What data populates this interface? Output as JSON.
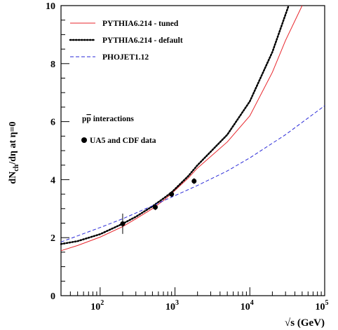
{
  "chart_data": {
    "type": "line",
    "title": "",
    "xlabel": "√s (GeV)",
    "ylabel_main": "dN",
    "ylabel_sub": "ch",
    "ylabel_rest": "/dη at η=0",
    "x_scale": "log",
    "xlim": [
      30,
      100000
    ],
    "ylim": [
      0,
      10
    ],
    "x_ticks": [
      {
        "value": 100,
        "base": "10",
        "exp": "2"
      },
      {
        "value": 1000,
        "base": "10",
        "exp": "3"
      },
      {
        "value": 10000,
        "base": "10",
        "exp": "4"
      },
      {
        "value": 100000,
        "base": "10",
        "exp": "5"
      }
    ],
    "y_ticks": [
      0,
      2,
      4,
      6,
      8,
      10
    ],
    "grid": false,
    "legend_position": "top-left",
    "series": [
      {
        "name": "PYTHIA6.214 - tuned",
        "color": "#e8262c",
        "style": "solid",
        "x": [
          30,
          50,
          100,
          200,
          300,
          500,
          700,
          900,
          1500,
          2000,
          5000,
          10000,
          20000,
          30000,
          50000
        ],
        "y": [
          1.55,
          1.73,
          2.02,
          2.38,
          2.65,
          3.0,
          3.28,
          3.52,
          4.05,
          4.4,
          5.3,
          6.2,
          7.7,
          8.8,
          10.3
        ]
      },
      {
        "name": "PYTHIA6.214 - default",
        "color": "#000000",
        "style": "dotted",
        "x": [
          30,
          50,
          100,
          200,
          300,
          500,
          700,
          900,
          1500,
          2000,
          5000,
          10000,
          20000,
          33000
        ],
        "y": [
          1.78,
          1.88,
          2.12,
          2.48,
          2.72,
          3.08,
          3.35,
          3.56,
          4.12,
          4.5,
          5.55,
          6.7,
          8.4,
          10.3
        ]
      },
      {
        "name": "PHOJET1.12",
        "color": "#2a2ad8",
        "style": "dashed",
        "x": [
          30,
          100,
          200,
          500,
          1000,
          2000,
          5000,
          10000,
          30000,
          100000
        ],
        "y": [
          1.85,
          2.35,
          2.65,
          3.1,
          3.45,
          3.8,
          4.3,
          4.75,
          5.55,
          6.55
        ]
      }
    ],
    "data_points": {
      "name": "UA5 and CDF data",
      "x": [
        200,
        546,
        900,
        1800
      ],
      "y": [
        2.48,
        3.05,
        3.5,
        3.95
      ],
      "yerr": [
        0.35,
        0.1,
        0.1,
        0.1
      ]
    },
    "annotations": {
      "process_prefix": "p",
      "process_bar": "p",
      "process_suffix": " interactions",
      "data_label": "UA5 and CDF data"
    }
  }
}
